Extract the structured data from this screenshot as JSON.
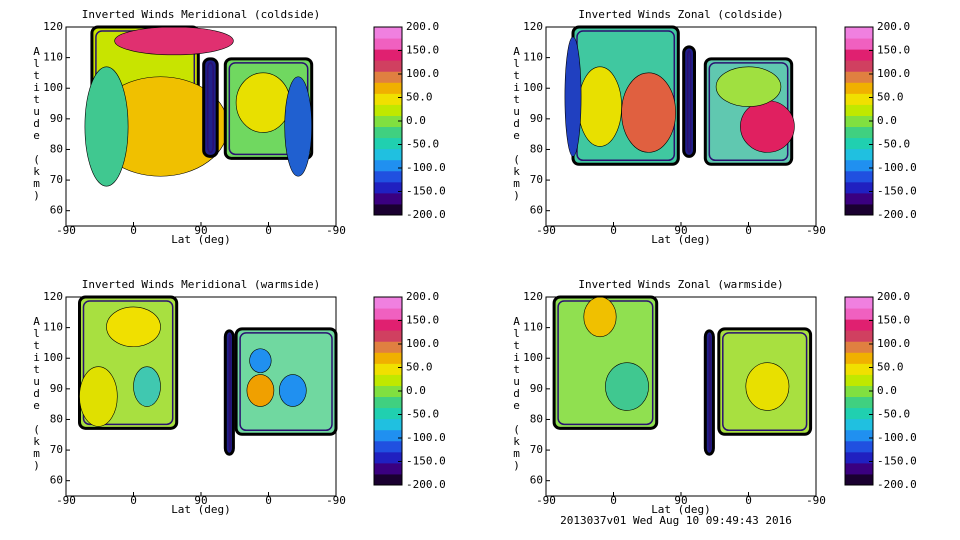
{
  "chart_data": [
    {
      "type": "contour",
      "title": "Inverted Winds Meridional (coldside)",
      "xlabel": "Lat (deg)",
      "ylabel": "Altitude (km)",
      "xlim": [
        0,
        360
      ],
      "xticks": [
        {
          "value": 0,
          "label": "-90"
        },
        {
          "value": 90,
          "label": "0"
        },
        {
          "value": 180,
          "label": "90"
        },
        {
          "value": 270,
          "label": "0"
        },
        {
          "value": 360,
          "label": "-90"
        }
      ],
      "ylim": [
        55,
        120
      ],
      "yticks": [
        60,
        70,
        80,
        90,
        100,
        110,
        120
      ],
      "colorbar": {
        "lim": [
          -200,
          200
        ],
        "ticks": [
          {
            "value": 200,
            "label": "200.0"
          },
          {
            "value": 150,
            "label": "150.0"
          },
          {
            "value": 100,
            "label": "100.0"
          },
          {
            "value": 50,
            "label": "50.0"
          },
          {
            "value": 0,
            "label": "0.0"
          },
          {
            "value": -50,
            "label": "-50.0"
          },
          {
            "value": -100,
            "label": "-100.0"
          },
          {
            "value": -150,
            "label": "-150.0"
          },
          {
            "value": -200,
            "label": "-200.0"
          }
        ],
        "colors": [
          "#1a0030",
          "#3a0080",
          "#2020c0",
          "#2050e0",
          "#2090f0",
          "#20c0e0",
          "#20d0b0",
          "#40d080",
          "#80e040",
          "#c0e800",
          "#f0e000",
          "#f0b000",
          "#e08040",
          "#d04060",
          "#e02070",
          "#f060c0",
          "#f080e0"
        ]
      }
    },
    {
      "type": "contour",
      "title": "Inverted Winds Zonal (coldside)",
      "xlabel": "Lat (deg)",
      "ylabel": "Altitude (km)",
      "xlim": [
        0,
        360
      ],
      "xticks": [
        {
          "value": 0,
          "label": "-90"
        },
        {
          "value": 90,
          "label": "0"
        },
        {
          "value": 180,
          "label": "90"
        },
        {
          "value": 270,
          "label": "0"
        },
        {
          "value": 360,
          "label": "-90"
        }
      ],
      "ylim": [
        55,
        120
      ],
      "yticks": [
        60,
        70,
        80,
        90,
        100,
        110,
        120
      ],
      "colorbar": {
        "lim": [
          -200,
          200
        ],
        "ticks": [
          {
            "value": 200,
            "label": "200.0"
          },
          {
            "value": 150,
            "label": "150.0"
          },
          {
            "value": 100,
            "label": "100.0"
          },
          {
            "value": 50,
            "label": "50.0"
          },
          {
            "value": 0,
            "label": "0.0"
          },
          {
            "value": -50,
            "label": "-50.0"
          },
          {
            "value": -100,
            "label": "-100.0"
          },
          {
            "value": -150,
            "label": "-150.0"
          },
          {
            "value": -200,
            "label": "-200.0"
          }
        ],
        "colors": [
          "#1a0030",
          "#3a0080",
          "#2020c0",
          "#2050e0",
          "#2090f0",
          "#20c0e0",
          "#20d0b0",
          "#40d080",
          "#80e040",
          "#c0e800",
          "#f0e000",
          "#f0b000",
          "#e08040",
          "#d04060",
          "#e02070",
          "#f060c0",
          "#f080e0"
        ]
      }
    },
    {
      "type": "contour",
      "title": "Inverted Winds Meridional (warmside)",
      "xlabel": "Lat (deg)",
      "ylabel": "Altitude (km)",
      "xlim": [
        0,
        360
      ],
      "xticks": [
        {
          "value": 0,
          "label": "-90"
        },
        {
          "value": 90,
          "label": "0"
        },
        {
          "value": 180,
          "label": "90"
        },
        {
          "value": 270,
          "label": "0"
        },
        {
          "value": 360,
          "label": "-90"
        }
      ],
      "ylim": [
        55,
        120
      ],
      "yticks": [
        60,
        70,
        80,
        90,
        100,
        110,
        120
      ],
      "colorbar": {
        "lim": [
          -200,
          200
        ],
        "ticks": [
          {
            "value": 200,
            "label": "200.0"
          },
          {
            "value": 150,
            "label": "150.0"
          },
          {
            "value": 100,
            "label": "100.0"
          },
          {
            "value": 50,
            "label": "50.0"
          },
          {
            "value": 0,
            "label": "0.0"
          },
          {
            "value": -50,
            "label": "-50.0"
          },
          {
            "value": -100,
            "label": "-100.0"
          },
          {
            "value": -150,
            "label": "-150.0"
          },
          {
            "value": -200,
            "label": "-200.0"
          }
        ],
        "colors": [
          "#1a0030",
          "#3a0080",
          "#2020c0",
          "#2050e0",
          "#2090f0",
          "#20c0e0",
          "#20d0b0",
          "#40d080",
          "#80e040",
          "#c0e800",
          "#f0e000",
          "#f0b000",
          "#e08040",
          "#d04060",
          "#e02070",
          "#f060c0",
          "#f080e0"
        ]
      }
    },
    {
      "type": "contour",
      "title": "Inverted Winds Zonal (warmside)",
      "xlabel": "Lat (deg)",
      "ylabel": "Altitude (km)",
      "xlim": [
        0,
        360
      ],
      "xticks": [
        {
          "value": 0,
          "label": "-90"
        },
        {
          "value": 90,
          "label": "0"
        },
        {
          "value": 180,
          "label": "90"
        },
        {
          "value": 270,
          "label": "0"
        },
        {
          "value": 360,
          "label": "-90"
        }
      ],
      "ylim": [
        55,
        120
      ],
      "yticks": [
        60,
        70,
        80,
        90,
        100,
        110,
        120
      ],
      "colorbar": {
        "lim": [
          -200,
          200
        ],
        "ticks": [
          {
            "value": 200,
            "label": "200.0"
          },
          {
            "value": 150,
            "label": "150.0"
          },
          {
            "value": 100,
            "label": "100.0"
          },
          {
            "value": 50,
            "label": "50.0"
          },
          {
            "value": 0,
            "label": "0.0"
          },
          {
            "value": -50,
            "label": "-50.0"
          },
          {
            "value": -100,
            "label": "-100.0"
          },
          {
            "value": -150,
            "label": "-150.0"
          },
          {
            "value": -200,
            "label": "-200.0"
          }
        ],
        "colors": [
          "#1a0030",
          "#3a0080",
          "#2020c0",
          "#2050e0",
          "#2090f0",
          "#20c0e0",
          "#20d0b0",
          "#40d080",
          "#80e040",
          "#c0e800",
          "#f0e000",
          "#f0b000",
          "#e08040",
          "#d04060",
          "#e02070",
          "#f060c0",
          "#f080e0"
        ]
      }
    }
  ],
  "footer": "2013037v01 Wed Aug 10 09:49:43 2016"
}
